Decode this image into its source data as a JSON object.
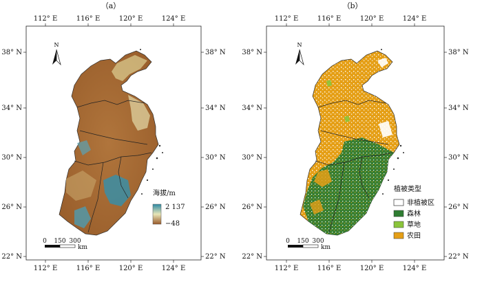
{
  "panels": [
    {
      "id": "a",
      "label": "（a）",
      "type": "elevation",
      "legend": {
        "title": "海拔/m",
        "max_label": "2 137",
        "min_label": "−48",
        "ramp_colors": [
          "#2e8aa5",
          "#e8e6b8",
          "#9a5a2a"
        ]
      }
    },
    {
      "id": "b",
      "label": "（b）",
      "type": "vegetation",
      "legend": {
        "title": "植被类型",
        "items": [
          {
            "label": "非植被区",
            "color": "#ffffff"
          },
          {
            "label": "森林",
            "color": "#2f7d32"
          },
          {
            "label": "草地",
            "color": "#8bc43b"
          },
          {
            "label": "农田",
            "color": "#e59f16"
          }
        ]
      }
    }
  ],
  "axes": {
    "lon_ticks": [
      "112° E",
      "116° E",
      "120° E",
      "124° E"
    ],
    "lat_ticks": [
      "38° N",
      "34° N",
      "30° N",
      "26° N",
      "22° N"
    ]
  },
  "north_arrow": {
    "label": "N"
  },
  "scale_bar": {
    "ticks": [
      "0",
      "150",
      "300"
    ],
    "unit": "km"
  }
}
